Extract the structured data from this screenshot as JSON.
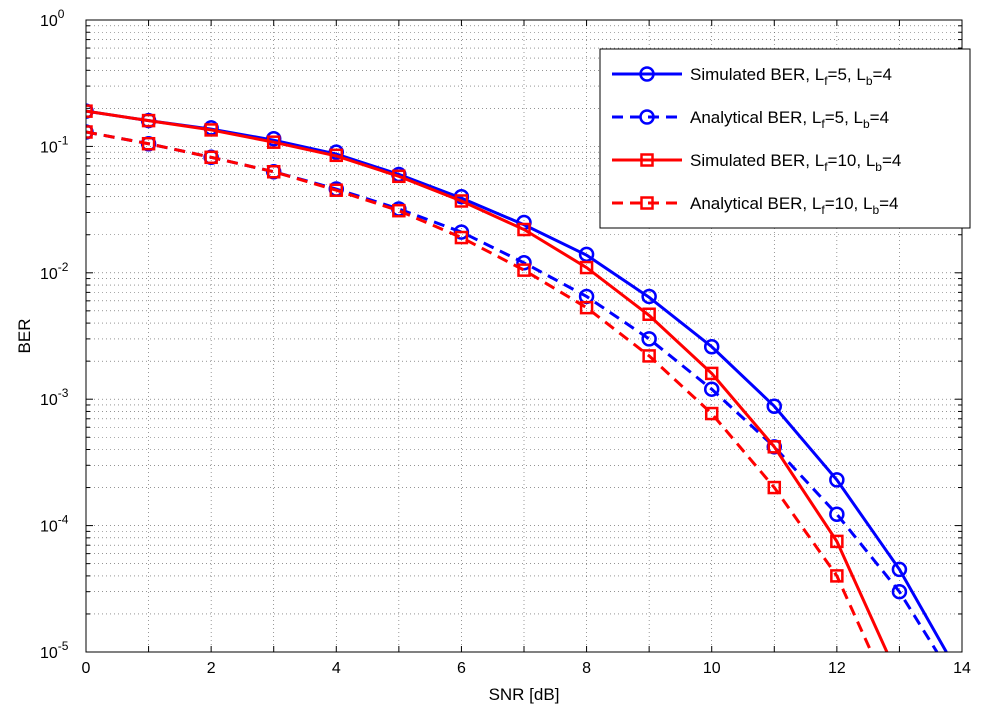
{
  "chart_data": {
    "type": "line",
    "xlabel": "SNR [dB]",
    "ylabel": "BER",
    "xlim": [
      0,
      14
    ],
    "ylim": [
      1e-05,
      1
    ],
    "yscale": "log",
    "grid": true,
    "legend_position": "top-right",
    "xticks": [
      "0",
      "2",
      "4",
      "6",
      "8",
      "10",
      "12",
      "14"
    ],
    "yticks": [
      {
        "base": "10",
        "exp": "0"
      },
      {
        "base": "10",
        "exp": "-1"
      },
      {
        "base": "10",
        "exp": "-2"
      },
      {
        "base": "10",
        "exp": "-3"
      },
      {
        "base": "10",
        "exp": "-4"
      },
      {
        "base": "10",
        "exp": "-5"
      }
    ],
    "series": [
      {
        "name": "Simulated BER, L_f=5, L_b=4",
        "legend": {
          "pre": "Simulated BER, L",
          "s1": "f",
          "mid": "=5, L",
          "s2": "b",
          "post": "=4"
        },
        "color": "#0000ff",
        "dash": "solid",
        "marker": "circle",
        "marker_x": [
          0,
          1,
          2,
          3,
          4,
          5,
          6,
          7,
          8,
          9,
          10,
          11,
          12,
          13
        ],
        "marker_y": [
          0.19,
          0.16,
          0.14,
          0.115,
          0.09,
          0.06,
          0.04,
          0.025,
          0.014,
          0.0065,
          0.0026,
          0.00088,
          0.00023,
          4.5e-05
        ],
        "curve_x": [
          0,
          1,
          2,
          3,
          4,
          5,
          6,
          7,
          8,
          9,
          10,
          11,
          12,
          13,
          13.75
        ],
        "curve_y": [
          0.19,
          0.16,
          0.137,
          0.112,
          0.087,
          0.06,
          0.039,
          0.024,
          0.0138,
          0.0064,
          0.0026,
          0.00088,
          0.00023,
          4.5e-05,
          1e-05
        ]
      },
      {
        "name": "Analytical BER, L_f=5, L_b=4",
        "legend": {
          "pre": "Analytical BER, L",
          "s1": "f",
          "mid": "=5, L",
          "s2": "b",
          "post": "=4"
        },
        "color": "#0000ff",
        "dash": "dashed",
        "marker": "circle",
        "marker_x": [
          0,
          1,
          2,
          3,
          4,
          5,
          6,
          7,
          8,
          9,
          10,
          11,
          12,
          13
        ],
        "marker_y": [
          0.13,
          0.105,
          0.082,
          0.063,
          0.046,
          0.032,
          0.021,
          0.012,
          0.0065,
          0.003,
          0.0012,
          0.00042,
          0.000123,
          3e-05
        ],
        "curve_x": [
          0,
          1,
          2,
          3,
          4,
          5,
          6,
          7,
          8,
          9,
          10,
          11,
          12,
          13,
          13.6
        ],
        "curve_y": [
          0.13,
          0.105,
          0.082,
          0.063,
          0.046,
          0.032,
          0.021,
          0.012,
          0.0065,
          0.003,
          0.0012,
          0.00042,
          0.000123,
          3e-05,
          1e-05
        ]
      },
      {
        "name": "Simulated BER, L_f=10, L_b=4",
        "legend": {
          "pre": "Simulated BER, L",
          "s1": "f",
          "mid": "=10, L",
          "s2": "b",
          "post": "=4"
        },
        "color": "#ff0000",
        "dash": "solid",
        "marker": "square",
        "marker_x": [
          0,
          1,
          2,
          3,
          4,
          5,
          6,
          7,
          8,
          9,
          10,
          11,
          12
        ],
        "marker_y": [
          0.19,
          0.16,
          0.135,
          0.108,
          0.085,
          0.058,
          0.037,
          0.022,
          0.011,
          0.0047,
          0.0016,
          0.00042,
          7.5e-05
        ],
        "curve_x": [
          0,
          1,
          2,
          3,
          4,
          5,
          6,
          7,
          8,
          9,
          10,
          11,
          12,
          12.8
        ],
        "curve_y": [
          0.19,
          0.16,
          0.135,
          0.108,
          0.084,
          0.058,
          0.037,
          0.022,
          0.011,
          0.0046,
          0.0016,
          0.00042,
          7.5e-05,
          1e-05
        ]
      },
      {
        "name": "Analytical BER, L_f=10, L_b=4",
        "legend": {
          "pre": "Analytical BER, L",
          "s1": "f",
          "mid": "=10, L",
          "s2": "b",
          "post": "=4"
        },
        "color": "#ff0000",
        "dash": "dashed",
        "marker": "square",
        "marker_x": [
          0,
          1,
          2,
          3,
          4,
          5,
          6,
          7,
          8,
          9,
          10,
          11,
          12
        ],
        "marker_y": [
          0.13,
          0.105,
          0.082,
          0.063,
          0.045,
          0.031,
          0.019,
          0.0105,
          0.0053,
          0.0022,
          0.00077,
          0.0002,
          4e-05
        ],
        "curve_x": [
          0,
          1,
          2,
          3,
          4,
          5,
          6,
          7,
          8,
          9,
          10,
          11,
          12,
          12.55
        ],
        "curve_y": [
          0.13,
          0.105,
          0.082,
          0.063,
          0.045,
          0.031,
          0.019,
          0.0105,
          0.0053,
          0.0022,
          0.00077,
          0.0002,
          4e-05,
          1e-05
        ]
      }
    ]
  }
}
